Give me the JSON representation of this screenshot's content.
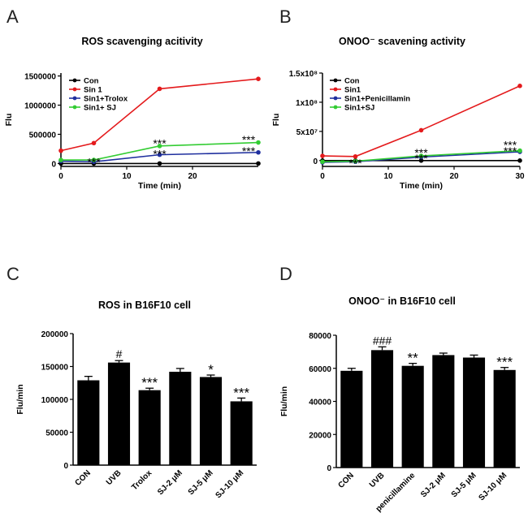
{
  "chart_data": [
    {
      "panel": "A",
      "type": "line",
      "title": "ROS scavenging acitivity",
      "xlabel": "Time (min)",
      "ylabel": "Flu",
      "xlim": [
        0,
        30
      ],
      "ylim": [
        -50000,
        1550000
      ],
      "x_ticks": [
        0,
        10,
        20
      ],
      "y_ticks": [
        0,
        500000,
        1000000,
        1500000
      ],
      "y_tick_labels": [
        "0",
        "500000",
        "1000000",
        "1500000"
      ],
      "legend": [
        "Con",
        "Sin 1",
        "Sin1+Trolox",
        "Sin1+ SJ"
      ],
      "series": [
        {
          "name": "Con",
          "color": "#000000",
          "x": [
            0,
            5,
            15,
            30
          ],
          "values": [
            0,
            0,
            0,
            0
          ]
        },
        {
          "name": "Sin 1",
          "color": "#e41a1c",
          "x": [
            0,
            5,
            15,
            30
          ],
          "values": [
            220000,
            350000,
            1280000,
            1450000
          ]
        },
        {
          "name": "Sin1+Trolox",
          "color": "#1f2f9e",
          "x": [
            0,
            5,
            15,
            30
          ],
          "values": [
            40000,
            30000,
            150000,
            190000
          ]
        },
        {
          "name": "Sin1+ SJ",
          "color": "#33cc33",
          "x": [
            0,
            5,
            15,
            30
          ],
          "values": [
            60000,
            60000,
            300000,
            360000
          ]
        }
      ],
      "annotations": [
        {
          "text": "***",
          "x": 5,
          "y": 40000
        },
        {
          "text": "***",
          "x": 15,
          "y": 360000
        },
        {
          "text": "***",
          "x": 15,
          "y": 180000
        },
        {
          "text": "***",
          "x": 30,
          "y": 420000
        },
        {
          "text": "***",
          "x": 30,
          "y": 230000
        }
      ]
    },
    {
      "panel": "B",
      "type": "line",
      "title": "ONOO⁻ scavening activity",
      "xlabel": "Time (min)",
      "ylabel": "Flu",
      "xlim": [
        0,
        30
      ],
      "ylim": [
        -10000000,
        150000000
      ],
      "x_ticks": [
        0,
        10,
        20,
        30
      ],
      "y_ticks": [
        0,
        50000000,
        100000000,
        150000000
      ],
      "y_tick_labels": [
        "0",
        "5x10⁷",
        "1x10⁸",
        "1.5x10⁸"
      ],
      "legend": [
        "Con",
        "Sin1",
        "Sin1+Penicillamin",
        "Sin1+SJ"
      ],
      "series": [
        {
          "name": "Con",
          "color": "#000000",
          "x": [
            0,
            5,
            15,
            30
          ],
          "values": [
            0,
            0,
            0,
            0
          ]
        },
        {
          "name": "Sin1",
          "color": "#e41a1c",
          "x": [
            0,
            5,
            15,
            30
          ],
          "values": [
            8000000,
            7000000,
            52000000,
            128000000
          ]
        },
        {
          "name": "Sin1+Penicillamin",
          "color": "#1f2f9e",
          "x": [
            0,
            5,
            15,
            30
          ],
          "values": [
            -3000000,
            -2000000,
            6000000,
            15000000
          ]
        },
        {
          "name": "Sin1+SJ",
          "color": "#33cc33",
          "x": [
            0,
            5,
            15,
            30
          ],
          "values": [
            -2000000,
            -1000000,
            8000000,
            17000000
          ]
        }
      ],
      "annotations": [
        {
          "text": "***",
          "x": 5,
          "y": -3000000
        },
        {
          "text": "***",
          "x": 15,
          "y": 15000000
        },
        {
          "text": "***",
          "x": 15,
          "y": 5000000
        },
        {
          "text": "***",
          "x": 30,
          "y": 28000000
        },
        {
          "text": "***",
          "x": 30,
          "y": 18000000
        }
      ]
    },
    {
      "panel": "C",
      "type": "bar",
      "title": "ROS in B16F10 cell",
      "xlabel": "",
      "ylabel": "Flu/min",
      "ylim": [
        0,
        200000
      ],
      "y_ticks": [
        0,
        50000,
        100000,
        150000,
        200000
      ],
      "y_tick_labels": [
        "0",
        "50000",
        "100000",
        "150000",
        "200000"
      ],
      "categories": [
        "CON",
        "UVB",
        "Trolox",
        "SJ-2 μM",
        "SJ-5 μM",
        "SJ-10 μM"
      ],
      "values": [
        129000,
        156000,
        114000,
        142000,
        134000,
        97000
      ],
      "errors": [
        6000,
        3000,
        3000,
        5000,
        3000,
        5000
      ],
      "significance": [
        "",
        "#",
        "***",
        "",
        "*",
        "***"
      ]
    },
    {
      "panel": "D",
      "type": "bar",
      "title": "ONOO⁻ in B16F10 cell",
      "xlabel": "",
      "ylabel": "Flu/min",
      "ylim": [
        0,
        80000
      ],
      "y_ticks": [
        0,
        20000,
        40000,
        60000,
        80000
      ],
      "y_tick_labels": [
        "0",
        "20000",
        "40000",
        "60000",
        "80000"
      ],
      "categories": [
        "CON",
        "UVB",
        "penicillamine",
        "SJ-2 μM",
        "SJ-5 μM",
        "SJ-10 μM"
      ],
      "values": [
        58500,
        71000,
        61500,
        68000,
        66500,
        59000
      ],
      "errors": [
        1500,
        2000,
        1500,
        1200,
        1500,
        1500
      ],
      "significance": [
        "",
        "###",
        "**",
        "",
        "",
        "***"
      ]
    }
  ]
}
